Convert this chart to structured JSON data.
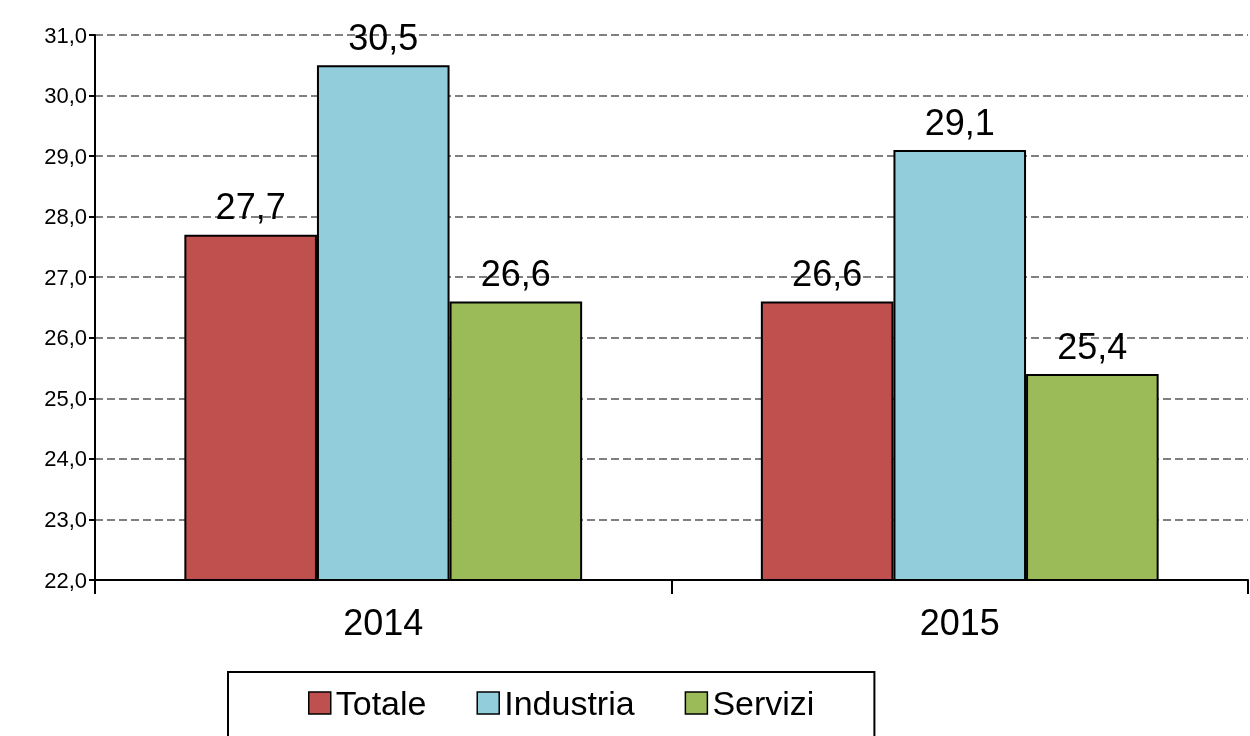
{
  "chart_data": {
    "type": "bar",
    "categories": [
      "2014",
      "2015"
    ],
    "series": [
      {
        "name": "Totale",
        "color": "#c0504d",
        "values": [
          27.7,
          26.6
        ],
        "value_labels": [
          "27,7",
          "26,6"
        ]
      },
      {
        "name": "Industria",
        "color": "#92cddc",
        "values": [
          30.5,
          29.1
        ],
        "value_labels": [
          "30,5",
          "29,1"
        ]
      },
      {
        "name": "Servizi",
        "color": "#9bbb59",
        "values": [
          26.6,
          25.4
        ],
        "value_labels": [
          "26,6",
          "25,4"
        ]
      }
    ],
    "ylim": [
      22,
      31
    ],
    "yticks": [
      {
        "value": 22,
        "label": "22,0"
      },
      {
        "value": 23,
        "label": "23,0"
      },
      {
        "value": 24,
        "label": "24,0"
      },
      {
        "value": 25,
        "label": "25,0"
      },
      {
        "value": 26,
        "label": "26,0"
      },
      {
        "value": 27,
        "label": "27,0"
      },
      {
        "value": 28,
        "label": "28,0"
      },
      {
        "value": 29,
        "label": "29,0"
      },
      {
        "value": 30,
        "label": "30,0"
      },
      {
        "value": 31,
        "label": "31,0"
      }
    ],
    "grid": "y",
    "legend": "bottom"
  }
}
